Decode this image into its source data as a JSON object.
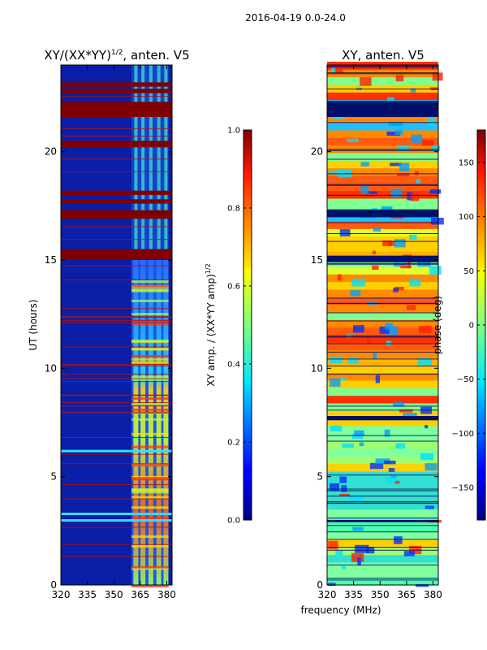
{
  "figure_title": "2016-04-19 0.0-24.0",
  "shared_xlabel": "frequency (MHz)",
  "colors": {
    "hot_band": "#7f0000",
    "base": "#0a1ea8",
    "frame": "#000000"
  },
  "chart_data": [
    {
      "type": "heatmap",
      "title_main": "XY/(XX*YY)",
      "title_sup": "1/2",
      "title_tail": ", anten. V5",
      "xlabel": "",
      "ylabel": "UT (hours)",
      "xlim": [
        320,
        383
      ],
      "ylim": [
        0,
        24
      ],
      "xticks": [
        320,
        335,
        350,
        365,
        380
      ],
      "yticks": [
        0,
        5,
        10,
        15,
        20
      ],
      "colorbar": {
        "label_main": "XY amp. / (XX*YY amp)",
        "label_sup": "1/2",
        "range": [
          0.0,
          1.0
        ],
        "ticks": [
          "0.0",
          "0.2",
          "0.4",
          "0.6",
          "0.8",
          "1.0"
        ]
      },
      "saturated_bands": [
        [
          15.0,
          15.5
        ],
        [
          16.9,
          17.3
        ],
        [
          17.6,
          17.8
        ],
        [
          18.0,
          18.2
        ],
        [
          20.2,
          20.5
        ],
        [
          21.6,
          22.3
        ],
        [
          22.7,
          22.9
        ],
        [
          23.0,
          23.2
        ]
      ],
      "bright_frequency_columns": [
        362.5,
        366.5,
        371.0,
        375.5,
        379.5
      ],
      "bright_rows": [
        3.0,
        3.3,
        6.2
      ]
    },
    {
      "type": "heatmap",
      "title_main": "XY, anten. V5",
      "xlabel": "frequency (MHz)",
      "ylabel": "",
      "xlim": [
        320,
        383
      ],
      "ylim": [
        0,
        24
      ],
      "xticks": [
        320,
        335,
        350,
        365,
        380
      ],
      "yticks": [
        0,
        5,
        10,
        15,
        20
      ],
      "colorbar": {
        "label_main": "phase (deg)",
        "range": [
          -180,
          180
        ],
        "ticks": [
          "−150",
          "−100",
          "−50",
          "0",
          "50",
          "100",
          "150"
        ]
      },
      "dark_bands": [
        [
          21.6,
          22.3
        ],
        [
          17.0,
          17.3
        ],
        [
          14.9,
          15.2
        ],
        [
          7.6,
          7.8
        ],
        [
          2.9,
          3.0
        ]
      ]
    }
  ]
}
